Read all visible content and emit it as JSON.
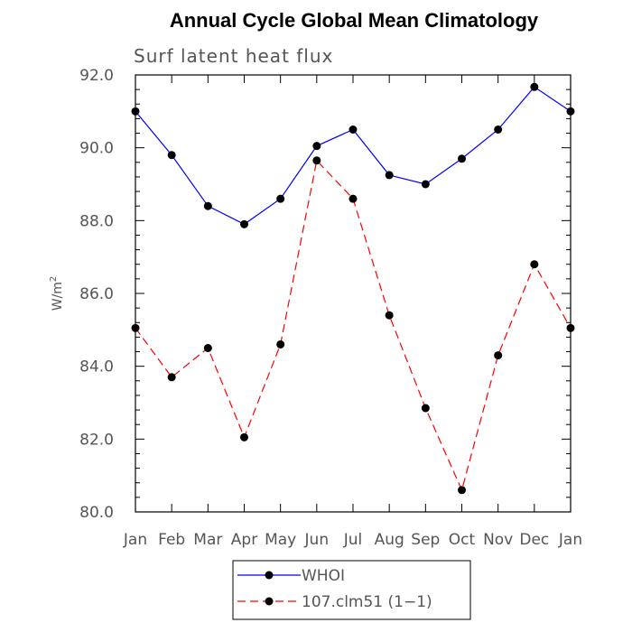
{
  "chart_data": {
    "type": "line",
    "title": "Annual Cycle Global Mean Climatology",
    "subtitle": "Surf latent heat flux",
    "ylabel": "W/m",
    "ylabel_sup": "2",
    "categories": [
      "Jan",
      "Feb",
      "Mar",
      "Apr",
      "May",
      "Jun",
      "Jul",
      "Aug",
      "Sep",
      "Oct",
      "Nov",
      "Dec",
      "Jan"
    ],
    "ylim": [
      80.0,
      92.0
    ],
    "yticks": [
      "80.0",
      "82.0",
      "84.0",
      "86.0",
      "88.0",
      "90.0",
      "92.0"
    ],
    "grid": false,
    "legend_position": "bottom",
    "series": [
      {
        "name": "WHOI",
        "color": "#0000ff",
        "dash": "solid",
        "values": [
          91.0,
          89.8,
          88.4,
          87.9,
          88.6,
          90.05,
          90.5,
          89.25,
          89.0,
          89.7,
          90.5,
          91.67,
          91.0
        ]
      },
      {
        "name": "107.clm51 (1−1)",
        "color": "#ff0000",
        "dash": "dashed",
        "values": [
          85.05,
          83.7,
          84.5,
          82.05,
          84.6,
          89.65,
          88.6,
          85.4,
          82.85,
          80.6,
          84.3,
          86.8,
          85.05
        ]
      }
    ]
  }
}
